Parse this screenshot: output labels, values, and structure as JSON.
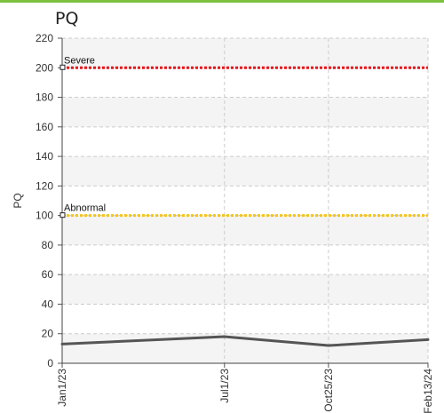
{
  "theme": {
    "accent": "#7cc142",
    "severe_color": "#e8141a",
    "abnormal_color": "#f5c518",
    "series_color": "#555555"
  },
  "chart_data": {
    "type": "line",
    "title": "PQ",
    "ylabel": "PQ",
    "xlabel": "",
    "ylim": [
      0,
      220
    ],
    "yticks": [
      0,
      20,
      40,
      60,
      80,
      100,
      120,
      140,
      160,
      180,
      200,
      220
    ],
    "x_dates": [
      "2023-01-01",
      "2023-07-01",
      "2023-10-25",
      "2024-02-13"
    ],
    "x_tick_labels": [
      "Jan1/23",
      "Jul1/23",
      "Oct25/23",
      "Feb13/24"
    ],
    "grid": true,
    "series": [
      {
        "values": [
          13,
          18,
          12,
          16
        ]
      }
    ],
    "reference_lines": [
      {
        "label": "Severe",
        "value": 200,
        "color": "#e8141a"
      },
      {
        "label": "Abnormal",
        "value": 100,
        "color": "#f5c518"
      }
    ]
  }
}
